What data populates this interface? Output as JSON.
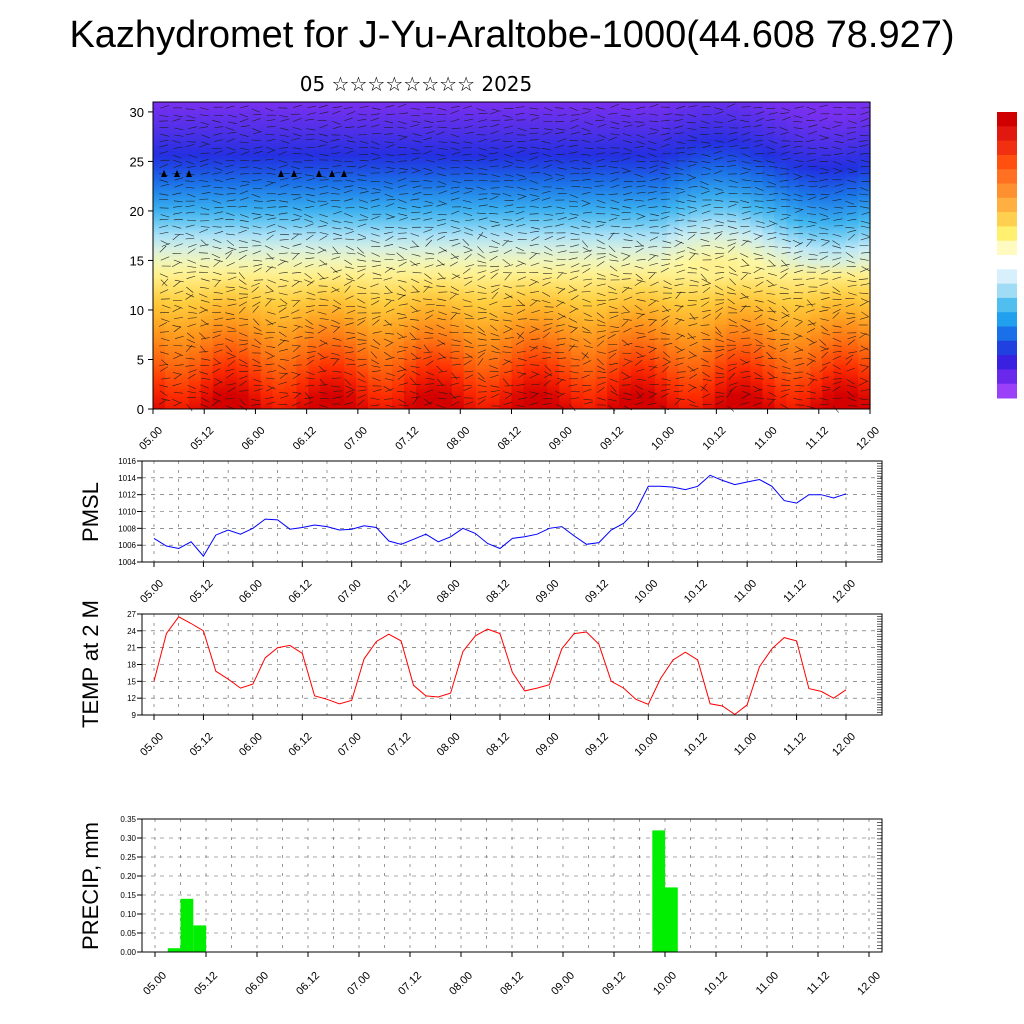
{
  "title": "Kazhydromet for J-Yu-Araltobe-1000(44.608 78.927)",
  "subtitle": "05 ☆☆☆☆☆☆☆☆ 2025",
  "colors": {
    "pmsl_line": "#0000ff",
    "temp_line": "#ff0000",
    "precip_bar": "#00ee00",
    "axis": "#000000"
  },
  "chart_data": [
    {
      "type": "heatmap",
      "name": "cross-section",
      "x_tick_labels": [
        "05.00",
        "05.12",
        "06.00",
        "06.12",
        "07.00",
        "07.12",
        "08.00",
        "08.12",
        "09.00",
        "09.12",
        "10.00",
        "10.12",
        "11.00",
        "11.12",
        "12.00"
      ],
      "y_ticks": [
        0,
        5,
        10,
        15,
        20,
        25,
        30
      ],
      "ylim": [
        0,
        31
      ],
      "colormap": [
        "#d40000",
        "#ff2a00",
        "#ff6a10",
        "#ffa020",
        "#ffd040",
        "#fff8a0",
        "#c8ecf8",
        "#40b8f0",
        "#1a78e8",
        "#2030e0",
        "#5030e8",
        "#7a30f0"
      ],
      "field_levels_by_height": [
        0,
        3,
        6,
        9,
        12,
        14.5,
        16,
        17.5,
        20,
        22.5,
        25,
        27.5,
        31
      ],
      "colorbar_colors_top_to_bottom": [
        "#d00000",
        "#e01810",
        "#f03010",
        "#ff5010",
        "#ff7020",
        "#ff9030",
        "#ffb040",
        "#ffd050",
        "#fff070",
        "#fffac0",
        "#ffffff",
        "#d8f0fb",
        "#a0dcf5",
        "#50bff0",
        "#20a0ee",
        "#1a70e8",
        "#2040e0",
        "#3a20e0",
        "#6a28ec",
        "#9a40f8"
      ]
    },
    {
      "type": "line",
      "name": "PMSL",
      "ylabel": "PMSL",
      "ylim": [
        1004,
        1016
      ],
      "y_ticks": [
        1004,
        1006,
        1008,
        1010,
        1012,
        1014,
        1016
      ],
      "x_tick_labels": [
        "05.00",
        "05.12",
        "06.00",
        "06.12",
        "07.00",
        "07.12",
        "08.00",
        "08.12",
        "09.00",
        "09.12",
        "10.00",
        "10.12",
        "11.00",
        "11.12",
        "12.00"
      ],
      "x_step_hours": 3,
      "values": [
        1006.8,
        1005.9,
        1005.6,
        1006.4,
        1004.7,
        1007.2,
        1007.8,
        1007.3,
        1008.0,
        1009.1,
        1009.0,
        1007.9,
        1008.1,
        1008.4,
        1008.2,
        1007.8,
        1007.9,
        1008.3,
        1008.1,
        1006.5,
        1006.1,
        1006.7,
        1007.3,
        1006.4,
        1007.0,
        1008.0,
        1007.4,
        1006.2,
        1005.6,
        1006.8,
        1007.0,
        1007.3,
        1008.0,
        1008.2,
        1007.1,
        1006.1,
        1006.3,
        1007.8,
        1008.6,
        1010.1,
        1013.0,
        1013.0,
        1012.9,
        1012.6,
        1013.0,
        1014.3,
        1013.7,
        1013.2,
        1013.5,
        1013.8,
        1013.0,
        1011.3,
        1011.0,
        1012.0,
        1012.0,
        1011.6,
        1012.1
      ]
    },
    {
      "type": "line",
      "name": "TEMP at 2 M",
      "ylabel": "TEMP at 2 M",
      "ylim": [
        9,
        27
      ],
      "y_ticks": [
        9,
        12,
        15,
        18,
        21,
        24,
        27
      ],
      "x_tick_labels": [
        "05.00",
        "05.12",
        "06.00",
        "06.12",
        "07.00",
        "07.12",
        "08.00",
        "08.12",
        "09.00",
        "09.12",
        "10.00",
        "10.12",
        "11.00",
        "11.12",
        "12.00"
      ],
      "x_step_hours": 3,
      "values": [
        15.0,
        23.5,
        26.5,
        25.3,
        24.0,
        16.8,
        15.4,
        13.8,
        14.5,
        19.2,
        21.0,
        21.4,
        20.0,
        12.4,
        11.8,
        11.0,
        11.6,
        19.0,
        22.1,
        23.4,
        22.2,
        14.3,
        12.4,
        12.2,
        12.9,
        20.3,
        23.1,
        24.3,
        23.5,
        16.6,
        13.3,
        13.8,
        14.4,
        20.8,
        23.5,
        23.8,
        21.6,
        15.0,
        13.8,
        11.8,
        10.9,
        15.5,
        18.8,
        20.2,
        18.8,
        11.0,
        10.6,
        9.1,
        10.8,
        17.6,
        20.8,
        22.8,
        22.2,
        13.7,
        13.2,
        12.0,
        13.5
      ]
    },
    {
      "type": "bar",
      "name": "PRECIP",
      "ylabel": "PRECIP, mm",
      "ylim": [
        0,
        0.35
      ],
      "y_ticks": [
        "0.00",
        "0.05",
        "0.10",
        "0.15",
        "0.20",
        "0.25",
        "0.30",
        "0.35"
      ],
      "x_tick_labels": [
        "05.00",
        "05.12",
        "06.00",
        "06.12",
        "07.00",
        "07.12",
        "08.00",
        "08.12",
        "09.00",
        "09.12",
        "10.00",
        "10.12",
        "11.00",
        "11.12",
        "12.00"
      ],
      "bar_width_hours": 3,
      "bars": [
        {
          "start_hour": 3,
          "value": 0.01
        },
        {
          "start_hour": 6,
          "value": 0.14
        },
        {
          "start_hour": 9,
          "value": 0.07
        },
        {
          "start_hour": 117,
          "value": 0.32
        },
        {
          "start_hour": 120,
          "value": 0.17
        }
      ]
    }
  ]
}
